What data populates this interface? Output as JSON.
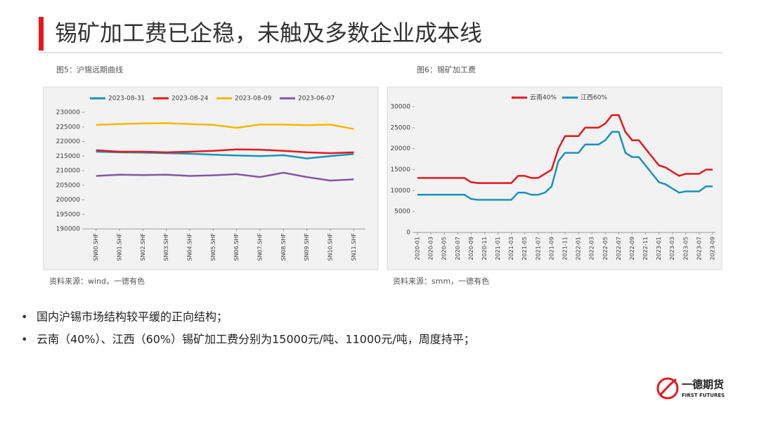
{
  "title": "锡矿加工费已企稳，未触及多数企业成本线",
  "chart_data": [
    {
      "type": "line",
      "title": "图5：沪锡远期曲线",
      "source": "资料来源：wind，一德有色",
      "legend": "top",
      "categories": [
        "SN00.SHF",
        "SN01.SHF",
        "SN02.SHF",
        "SN03.SHF",
        "SN04.SHF",
        "SN05.SHF",
        "SN06.SHF",
        "SN07.SHF",
        "SN08.SHF",
        "SN09.SHF",
        "SN10.SHF",
        "SN11.SHF"
      ],
      "ylim": [
        190000,
        230000
      ],
      "yticks": [
        190000,
        195000,
        200000,
        205000,
        210000,
        215000,
        220000,
        225000,
        230000
      ],
      "series": [
        {
          "name": "2023-08-31",
          "color": "#1a93b8",
          "values": [
            216500,
            216300,
            216200,
            216000,
            215800,
            215500,
            215200,
            215000,
            215300,
            214200,
            215000,
            215700
          ]
        },
        {
          "name": "2023-08-24",
          "color": "#e3191f",
          "values": [
            217000,
            216500,
            216500,
            216300,
            216500,
            216800,
            217300,
            217200,
            216800,
            216300,
            216000,
            216300
          ]
        },
        {
          "name": "2023-08-09",
          "color": "#f5b800",
          "values": [
            225700,
            226000,
            226200,
            226300,
            226000,
            225700,
            224700,
            225800,
            225800,
            225600,
            225800,
            224300
          ]
        },
        {
          "name": "2023-06-07",
          "color": "#7e5aa2",
          "values": [
            208200,
            208600,
            208500,
            208600,
            208200,
            208400,
            208800,
            207800,
            209300,
            207800,
            206600,
            207000
          ]
        }
      ]
    },
    {
      "type": "line",
      "title": "图6：锡矿加工费",
      "source": "资料来源：smm，一德有色",
      "legend": "top",
      "categories": [
        "2020-01",
        null,
        "2020-03",
        null,
        "2020-05",
        null,
        "2020-07",
        null,
        "2020-09",
        null,
        "2020-11",
        null,
        "2021-01",
        null,
        "2021-03",
        null,
        "2021-05",
        null,
        "2021-07",
        null,
        "2021-09",
        null,
        "2021-11",
        null,
        "2022-01",
        null,
        "2022-03",
        null,
        "2022-05",
        null,
        "2022-07",
        null,
        "2022-09",
        null,
        "2022-11",
        null,
        "2023-01",
        null,
        "2023-03",
        null,
        "2023-05",
        null,
        "2023-07",
        null,
        "2023-09"
      ],
      "ylim": [
        0,
        30000
      ],
      "yticks": [
        0,
        5000,
        10000,
        15000,
        20000,
        25000,
        30000
      ],
      "series": [
        {
          "name": "云南40%",
          "color": "#e3191f",
          "values": [
            13000,
            13000,
            13000,
            13000,
            13000,
            13000,
            13000,
            13000,
            12000,
            11800,
            11800,
            11800,
            11800,
            11800,
            11800,
            13500,
            13500,
            13000,
            13000,
            14000,
            15000,
            20000,
            23000,
            23000,
            23000,
            25000,
            25000,
            25000,
            26000,
            28000,
            28000,
            24000,
            22000,
            22000,
            20000,
            18000,
            16000,
            15500,
            14500,
            13500,
            14000,
            14000,
            14000,
            15000,
            15000
          ]
        },
        {
          "name": "江西60%",
          "color": "#1a93b8",
          "values": [
            9000,
            9000,
            9000,
            9000,
            9000,
            9000,
            9000,
            9000,
            8000,
            7800,
            7800,
            7800,
            7800,
            7800,
            7800,
            9500,
            9500,
            9000,
            9000,
            9500,
            11000,
            17000,
            19000,
            19000,
            19000,
            21000,
            21000,
            21000,
            22000,
            24000,
            24000,
            19000,
            18000,
            18000,
            16000,
            14000,
            12000,
            11500,
            10500,
            9500,
            9800,
            9800,
            9800,
            11000,
            11000
          ]
        }
      ]
    }
  ],
  "bullets": [
    "国内沪锡市场结构较平缓的正向结构；",
    "云南（40%）、江西（60%）锡矿加工费分别为15000元/吨、11000元/吨，周度持平；"
  ],
  "logo": {
    "name": "一德期货",
    "english": "FIRST FUTURES"
  }
}
